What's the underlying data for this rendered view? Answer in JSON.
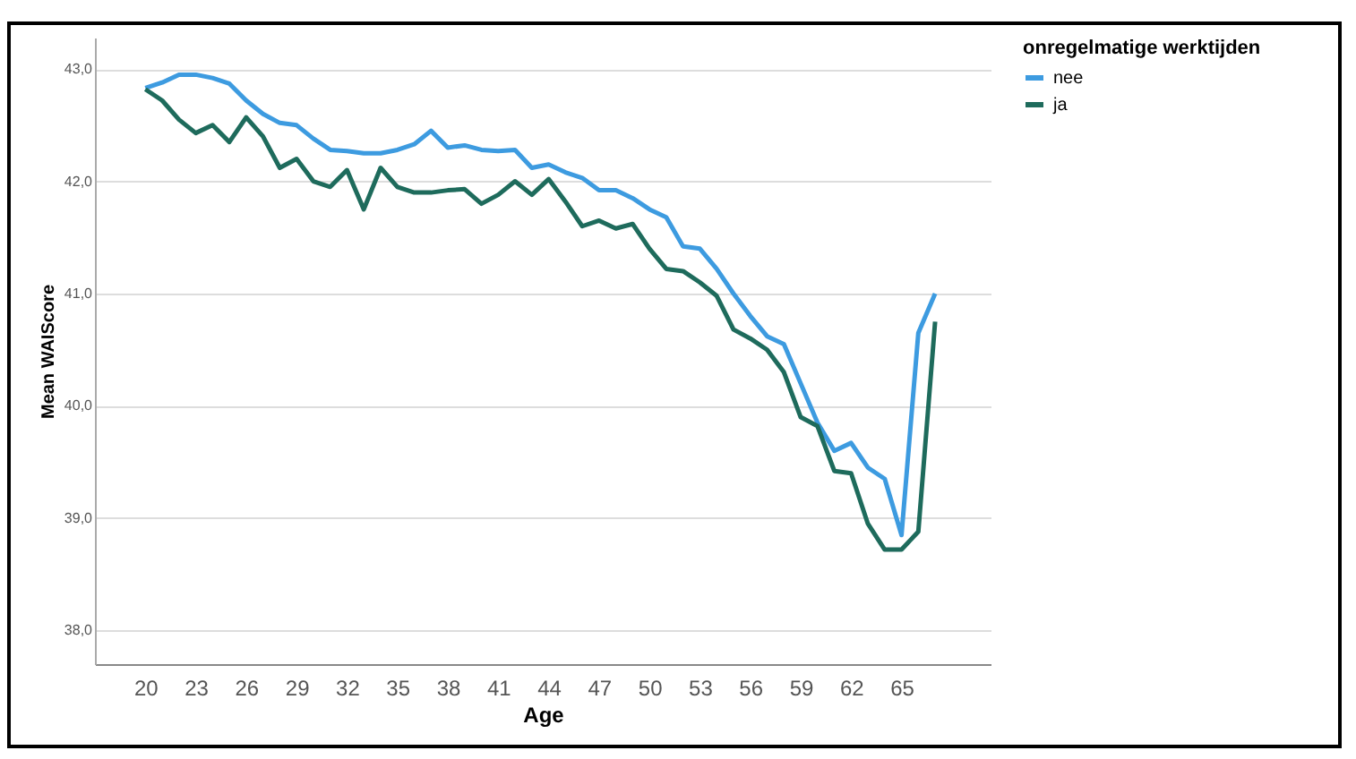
{
  "chart_data": {
    "type": "line",
    "xlabel": "Age",
    "ylabel": "Mean WAIScore",
    "legend_title": "onregelmatige werktijden",
    "x": [
      20,
      21,
      22,
      23,
      24,
      25,
      26,
      27,
      28,
      29,
      30,
      31,
      32,
      33,
      34,
      35,
      36,
      37,
      38,
      39,
      40,
      41,
      42,
      43,
      44,
      45,
      46,
      47,
      48,
      49,
      50,
      51,
      52,
      53,
      54,
      55,
      56,
      57,
      58,
      59,
      60,
      61,
      62,
      63,
      64,
      65,
      66,
      67
    ],
    "series": [
      {
        "name": "nee",
        "color": "#3d9be0",
        "values": [
          42.83,
          42.88,
          42.95,
          42.95,
          42.92,
          42.87,
          42.72,
          42.6,
          42.52,
          42.5,
          42.38,
          42.28,
          42.27,
          42.25,
          42.25,
          42.28,
          42.33,
          42.45,
          42.3,
          42.32,
          42.28,
          42.27,
          42.28,
          42.12,
          42.15,
          42.08,
          42.03,
          41.92,
          41.92,
          41.85,
          41.75,
          41.68,
          41.42,
          41.4,
          41.22,
          41.0,
          40.8,
          40.62,
          40.55,
          40.2,
          39.85,
          39.6,
          39.67,
          39.45,
          39.35,
          38.85,
          40.65,
          41.0
        ]
      },
      {
        "name": "ja",
        "color": "#1e6b5c",
        "values": [
          42.82,
          42.72,
          42.55,
          42.43,
          42.5,
          42.35,
          42.57,
          42.4,
          42.12,
          42.2,
          42.0,
          41.95,
          42.1,
          41.75,
          42.12,
          41.95,
          41.9,
          41.9,
          41.92,
          41.93,
          41.8,
          41.88,
          42.0,
          41.88,
          42.02,
          41.82,
          41.6,
          41.65,
          41.58,
          41.62,
          41.4,
          41.22,
          41.2,
          41.1,
          40.98,
          40.68,
          40.6,
          40.5,
          40.3,
          39.9,
          39.82,
          39.42,
          39.4,
          38.95,
          38.72,
          38.72,
          38.88,
          40.75
        ]
      }
    ],
    "xlim": [
      17,
      70.3
    ],
    "xticks": [
      20,
      23,
      26,
      29,
      32,
      35,
      38,
      41,
      44,
      47,
      50,
      53,
      56,
      59,
      62,
      65
    ],
    "ylim": [
      37.7,
      43.28
    ],
    "yticks": [
      {
        "value": 38,
        "label": "38,0"
      },
      {
        "value": 39,
        "label": "39,0"
      },
      {
        "value": 40,
        "label": "40,0"
      },
      {
        "value": 41,
        "label": "41,0"
      },
      {
        "value": 42,
        "label": "42,0"
      },
      {
        "value": 43,
        "label": "43,0"
      }
    ],
    "grid": "y",
    "legend": "top right",
    "marker": "none",
    "line_style": "solid"
  }
}
